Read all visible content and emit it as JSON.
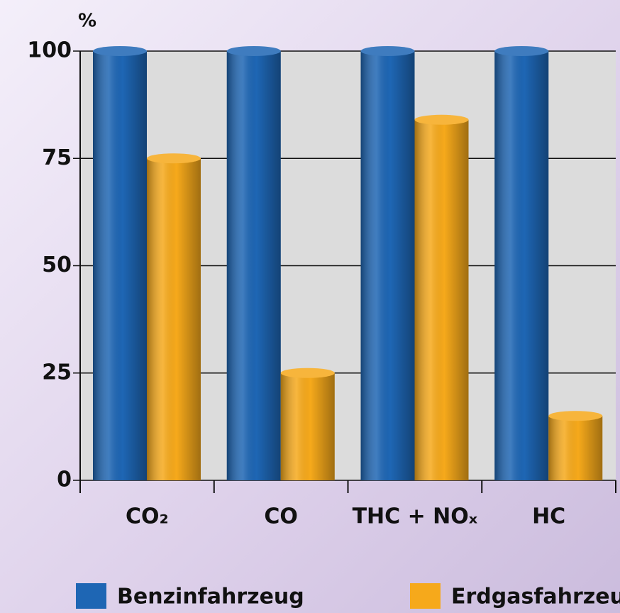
{
  "chart_data": {
    "type": "bar",
    "y_label": "%",
    "categories": [
      "CO₂",
      "CO",
      "THC + NOₓ",
      "HC"
    ],
    "series": [
      {
        "name": "Benzinfahrzeug",
        "color": "#1e66b4",
        "values": [
          100,
          100,
          100,
          100
        ]
      },
      {
        "name": "Erdgasfahrzeug",
        "color": "#f6a91b",
        "values": [
          75,
          25,
          84,
          15
        ]
      }
    ],
    "ylim": [
      0,
      100
    ],
    "yticks": [
      0,
      25,
      50,
      75,
      100
    ],
    "grid": true
  }
}
